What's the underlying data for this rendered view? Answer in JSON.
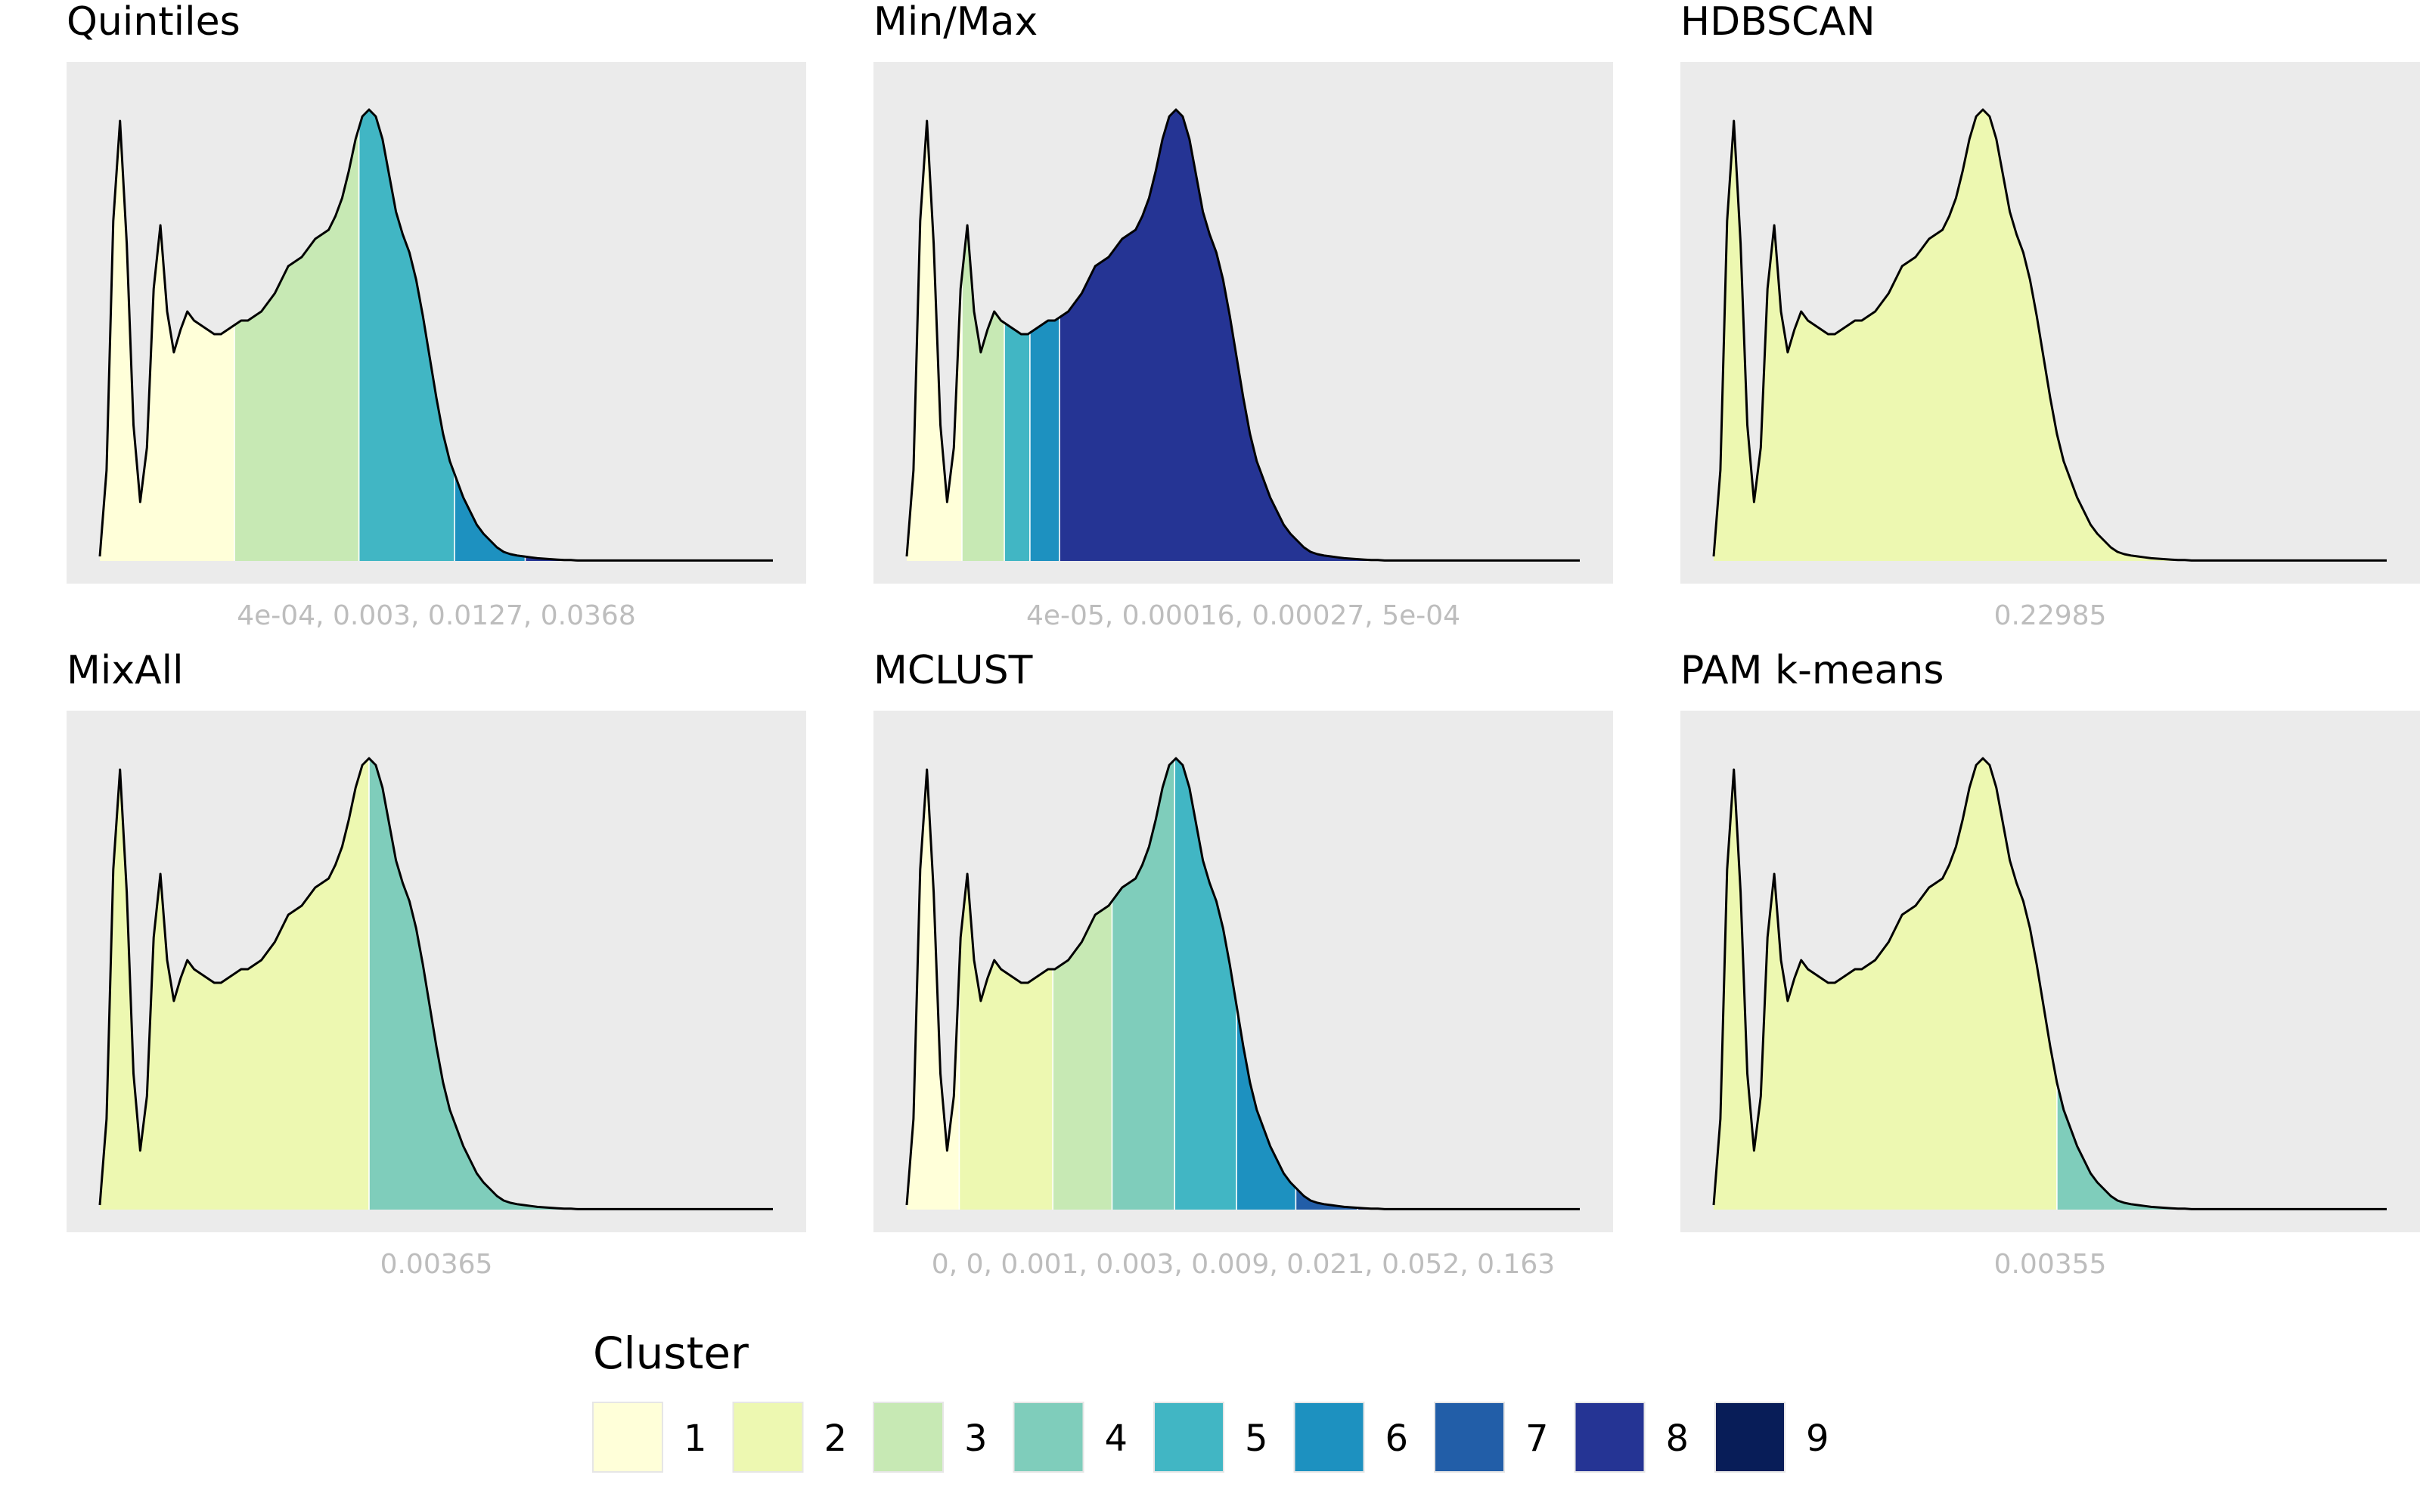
{
  "density_curve": {
    "x": [
      0,
      0.1,
      0.2,
      0.3,
      0.4,
      0.5,
      0.6,
      0.7,
      0.8,
      0.9,
      1.0,
      1.1,
      1.2,
      1.3,
      1.4,
      1.5,
      1.6,
      1.7,
      1.8,
      1.9,
      2.0,
      2.1,
      2.2,
      2.3,
      2.4,
      2.5,
      2.6,
      2.7,
      2.8,
      2.9,
      3.0,
      3.1,
      3.2,
      3.3,
      3.4,
      3.5,
      3.6,
      3.7,
      3.8,
      3.9,
      4.0,
      4.1,
      4.2,
      4.3,
      4.4,
      4.5,
      4.6,
      4.7,
      4.8,
      4.9,
      5.0,
      5.1,
      5.2,
      5.3,
      5.4,
      5.5,
      5.6,
      5.7,
      5.8,
      5.9,
      6.0,
      6.1,
      6.2,
      6.3,
      6.4,
      6.5,
      6.6,
      6.7,
      6.8,
      6.9,
      7.0,
      7.1,
      7.2,
      7.3,
      7.4,
      7.5,
      7.6,
      7.7,
      7.8,
      7.9,
      8.0,
      8.1,
      8.2,
      8.3,
      8.4,
      8.5,
      8.6,
      8.7,
      8.8,
      8.9,
      9.0,
      9.1,
      9.2,
      9.3,
      9.4,
      9.5,
      9.6,
      9.7,
      9.8,
      9.9,
      10.0
    ],
    "y": [
      0.01,
      0.2,
      0.75,
      0.97,
      0.7,
      0.3,
      0.13,
      0.25,
      0.6,
      0.74,
      0.55,
      0.46,
      0.51,
      0.55,
      0.53,
      0.52,
      0.51,
      0.5,
      0.5,
      0.51,
      0.52,
      0.53,
      0.53,
      0.54,
      0.55,
      0.57,
      0.59,
      0.62,
      0.65,
      0.66,
      0.67,
      0.69,
      0.71,
      0.72,
      0.73,
      0.76,
      0.8,
      0.86,
      0.93,
      0.98,
      0.995,
      0.98,
      0.93,
      0.85,
      0.77,
      0.72,
      0.68,
      0.62,
      0.54,
      0.45,
      0.36,
      0.28,
      0.22,
      0.18,
      0.14,
      0.11,
      0.08,
      0.06,
      0.045,
      0.03,
      0.02,
      0.015,
      0.012,
      0.01,
      0.008,
      0.006,
      0.005,
      0.004,
      0.003,
      0.002,
      0.002,
      0.001,
      0.001,
      0.001,
      0.001,
      0.001,
      0.001,
      0.001,
      0.001,
      0.001,
      0.001,
      0.001,
      0.001,
      0.001,
      0.001,
      0.001,
      0.001,
      0.001,
      0.001,
      0.001,
      0.001,
      0.001,
      0.001,
      0.001,
      0.001,
      0.001,
      0.001,
      0.001,
      0.001,
      0.001,
      0.001
    ],
    "xlim": [
      0,
      10
    ],
    "ylim": [
      0,
      1.08
    ]
  },
  "chart_data": [
    {
      "type": "area",
      "title": "Quintiles",
      "xlabel": "4e-04, 0.003, 0.0127, 0.0368",
      "segments": [
        {
          "cluster": "1",
          "from": 0,
          "to": 2.0
        },
        {
          "cluster": "3",
          "from": 2.0,
          "to": 3.85
        },
        {
          "cluster": "5",
          "from": 3.85,
          "to": 5.27
        },
        {
          "cluster": "6",
          "from": 5.27,
          "to": 6.32
        },
        {
          "cluster": "8",
          "from": 6.32,
          "to": 10
        }
      ]
    },
    {
      "type": "area",
      "title": "Min/Max",
      "xlabel": "4e-05, 0.00016, 0.00027, 5e-04",
      "segments": [
        {
          "cluster": "1",
          "from": 0,
          "to": 0.82
        },
        {
          "cluster": "3",
          "from": 0.82,
          "to": 1.45
        },
        {
          "cluster": "5",
          "from": 1.45,
          "to": 1.83
        },
        {
          "cluster": "6",
          "from": 1.83,
          "to": 2.27
        },
        {
          "cluster": "8",
          "from": 2.27,
          "to": 10
        }
      ]
    },
    {
      "type": "area",
      "title": "HDBSCAN",
      "xlabel": "0.22985",
      "segments": [
        {
          "cluster": "2",
          "from": 0,
          "to": 8.15
        },
        {
          "cluster": "4",
          "from": 8.15,
          "to": 10
        }
      ]
    },
    {
      "type": "area",
      "title": "MixAll",
      "xlabel": "0.00365",
      "segments": [
        {
          "cluster": "2",
          "from": 0,
          "to": 4.0
        },
        {
          "cluster": "4",
          "from": 4.0,
          "to": 10
        }
      ]
    },
    {
      "type": "area",
      "title": "MCLUST",
      "xlabel": "0, 0, 0.001, 0.003, 0.009, 0.021, 0.052, 0.163",
      "segments": [
        {
          "cluster": "1",
          "from": 0,
          "to": 0.78
        },
        {
          "cluster": "2",
          "from": 0.78,
          "to": 2.17
        },
        {
          "cluster": "3",
          "from": 2.17,
          "to": 3.05
        },
        {
          "cluster": "4",
          "from": 3.05,
          "to": 3.98
        },
        {
          "cluster": "5",
          "from": 3.98,
          "to": 4.9
        },
        {
          "cluster": "6",
          "from": 4.9,
          "to": 5.78
        },
        {
          "cluster": "7",
          "from": 5.78,
          "to": 6.7
        },
        {
          "cluster": "8",
          "from": 6.7,
          "to": 7.8
        },
        {
          "cluster": "9",
          "from": 7.8,
          "to": 10
        }
      ]
    },
    {
      "type": "area",
      "title": "PAM k-means",
      "xlabel": "0.00355",
      "segments": [
        {
          "cluster": "2",
          "from": 0,
          "to": 5.1
        },
        {
          "cluster": "4",
          "from": 5.1,
          "to": 10
        }
      ]
    }
  ],
  "legend": {
    "title": "Cluster",
    "items": [
      {
        "label": "1",
        "color": "#ffffd9"
      },
      {
        "label": "2",
        "color": "#edf8b1"
      },
      {
        "label": "3",
        "color": "#c7e9b4"
      },
      {
        "label": "4",
        "color": "#7fcdbb"
      },
      {
        "label": "5",
        "color": "#41b6c4"
      },
      {
        "label": "6",
        "color": "#1d91c0"
      },
      {
        "label": "7",
        "color": "#225ea8"
      },
      {
        "label": "8",
        "color": "#253494"
      },
      {
        "label": "9",
        "color": "#081d58"
      }
    ]
  },
  "colors": {
    "panel_bg": "#ebebeb",
    "caption": "#bdbdbd",
    "outline": "#000000",
    "divider": "#ffffff"
  }
}
